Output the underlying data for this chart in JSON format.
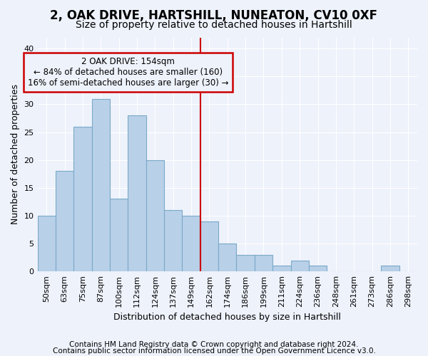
{
  "title1": "2, OAK DRIVE, HARTSHILL, NUNEATON, CV10 0XF",
  "title2": "Size of property relative to detached houses in Hartshill",
  "xlabel": "Distribution of detached houses by size in Hartshill",
  "ylabel": "Number of detached properties",
  "bins": [
    "50sqm",
    "63sqm",
    "75sqm",
    "87sqm",
    "100sqm",
    "112sqm",
    "124sqm",
    "137sqm",
    "149sqm",
    "162sqm",
    "174sqm",
    "186sqm",
    "199sqm",
    "211sqm",
    "224sqm",
    "236sqm",
    "248sqm",
    "261sqm",
    "273sqm",
    "286sqm",
    "298sqm"
  ],
  "values": [
    10,
    18,
    26,
    31,
    13,
    28,
    20,
    11,
    10,
    9,
    5,
    3,
    3,
    1,
    2,
    1,
    0,
    0,
    0,
    1,
    0
  ],
  "bar_color": "#b8d0e8",
  "bar_edge_color": "#7aaac8",
  "vline_x_idx": 8,
  "vline_color": "#cc0000",
  "ann_line1": "2 OAK DRIVE: 154sqm",
  "ann_line2": "← 84% of detached houses are smaller (160)",
  "ann_line3": "16% of semi-detached houses are larger (30) →",
  "annotation_box_color": "#cc0000",
  "ylim": [
    0,
    42
  ],
  "yticks": [
    0,
    5,
    10,
    15,
    20,
    25,
    30,
    35,
    40
  ],
  "footer1": "Contains HM Land Registry data © Crown copyright and database right 2024.",
  "footer2": "Contains public sector information licensed under the Open Government Licence v3.0.",
  "bg_color": "#eef2fb",
  "grid_color": "#ffffff",
  "title1_fontsize": 12,
  "title2_fontsize": 10,
  "axis_label_fontsize": 9,
  "tick_fontsize": 8,
  "ann_fontsize": 8.5,
  "footer_fontsize": 7.5
}
